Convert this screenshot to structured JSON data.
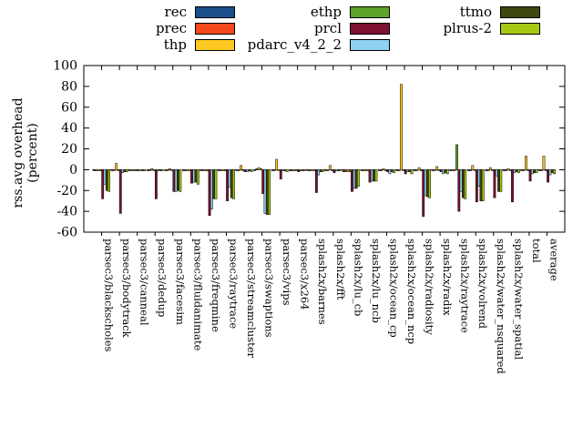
{
  "chart_data": {
    "type": "bar",
    "title": "",
    "ylabel_lines": [
      "rss.avg overhead",
      "(percent)"
    ],
    "ylim": [
      -60,
      100
    ],
    "yticks": [
      -60,
      -40,
      -20,
      0,
      20,
      40,
      60,
      80,
      100
    ],
    "grid": false,
    "zero_line": true,
    "legend_position": "top-center",
    "categories": [
      "parsec3/blackscholes",
      "parsec3/bodytrack",
      "parsec3/canneal",
      "parsec3/dedup",
      "parsec3/facesim",
      "parsec3/fluidanimate",
      "parsec3/freqmine",
      "parsec3/raytrace",
      "parsec3/streamcluster",
      "parsec3/swaptions",
      "parsec3/vips",
      "parsec3/x264",
      "splash2x/barnes",
      "splash2x/fft",
      "splash2x/lu_cb",
      "splash2x/lu_ncb",
      "splash2x/ocean_cp",
      "splash2x/ocean_ncp",
      "splash2x/radiosity",
      "splash2x/radix",
      "splash2x/raytrace",
      "splash2x/volrend",
      "splash2x/water_nsquared",
      "splash2x/water_spatial",
      "total",
      "average"
    ],
    "series": [
      {
        "name": "rec",
        "color": "#1a4f8b",
        "values": [
          -1,
          -1,
          -1,
          -1,
          -1,
          -1,
          -1,
          -1,
          -1,
          -1,
          -1,
          -1,
          -1,
          -1,
          -2,
          -1,
          -1,
          -1,
          -1,
          -1,
          -1,
          -1,
          -1,
          -1,
          -1,
          -1
        ]
      },
      {
        "name": "prec",
        "color": "#f4481d",
        "values": [
          -1,
          -1,
          -1,
          -1,
          -1,
          -1,
          -1,
          -1,
          -1,
          1,
          -1,
          -1,
          -1,
          -1,
          -2,
          -1,
          -1,
          -1,
          -1,
          -1,
          -1,
          -1,
          -1,
          -1,
          -1,
          -1
        ]
      },
      {
        "name": "thp",
        "color": "#fdc821",
        "values": [
          -1,
          6,
          -1,
          1,
          1,
          -1,
          -1,
          -1,
          4,
          2,
          10,
          -1,
          -1,
          4,
          -2,
          -1,
          1,
          82,
          2,
          3,
          -1,
          4,
          2,
          1,
          13,
          13
        ]
      },
      {
        "name": "ethp",
        "color": "#5da327",
        "values": [
          -1,
          -1,
          -1,
          -1,
          -1,
          -1,
          -1,
          -1,
          -1,
          1,
          -1,
          -1,
          -1,
          -1,
          -2,
          -1,
          -1,
          -1,
          -1,
          -1,
          24,
          -1,
          -1,
          -1,
          -1,
          -1
        ]
      },
      {
        "name": "prcl",
        "color": "#7d1230",
        "values": [
          -28,
          -42,
          -1,
          -28,
          -21,
          -13,
          -44,
          -30,
          -2,
          -23,
          -9,
          -2,
          -22,
          -3,
          -21,
          -12,
          -2,
          -4,
          -45,
          -2,
          -40,
          -31,
          -27,
          -31,
          -11,
          -12
        ]
      },
      {
        "name": "pdarc_v4_2_2",
        "color": "#8fd1f0",
        "values": [
          -14,
          -3,
          -1,
          -1,
          -21,
          -12,
          -38,
          -17,
          -2,
          -42,
          -1,
          -1,
          -5,
          -1,
          -18,
          -11,
          -4,
          -2,
          -25,
          -4,
          -21,
          -16,
          -6,
          -3,
          -4,
          -5
        ]
      },
      {
        "name": "ttmo",
        "color": "#3f470e",
        "values": [
          -20,
          -2,
          -1,
          -1,
          -20,
          -12,
          -28,
          -27,
          -1,
          -43,
          -1,
          -1,
          -2,
          -1,
          -18,
          -11,
          -2,
          -2,
          -26,
          -3,
          -27,
          -30,
          -21,
          -2,
          -3,
          -3
        ]
      },
      {
        "name": "plrus-2",
        "color": "#a6c813",
        "values": [
          -21,
          -2,
          -1,
          -1,
          -21,
          -14,
          -28,
          -28,
          -2,
          -43,
          -2,
          -1,
          -2,
          -1,
          -16,
          -11,
          -3,
          -4,
          -27,
          -4,
          -28,
          -30,
          -21,
          -3,
          -3,
          -4
        ]
      }
    ]
  },
  "legend": {
    "columns": [
      {
        "items": [
          "rec",
          "prec",
          "thp"
        ]
      },
      {
        "items": [
          "ethp",
          "prcl",
          "pdarc_v4_2_2"
        ]
      },
      {
        "items": [
          "ttmo",
          "plrus-2"
        ]
      }
    ]
  },
  "axis": {
    "ylabel_line1": "rss.avg overhead",
    "ylabel_line2": "(percent)"
  }
}
